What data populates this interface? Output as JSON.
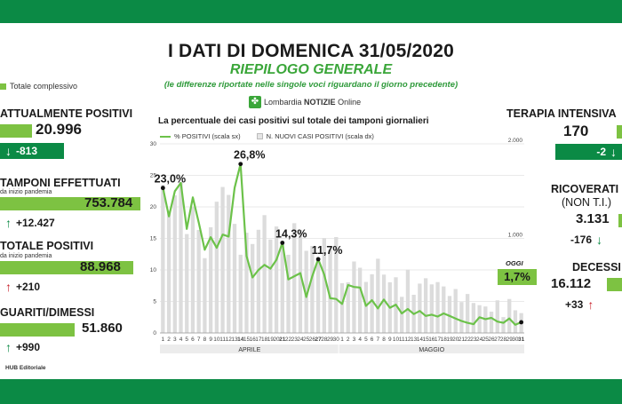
{
  "header": {
    "title": "I DATI DI DOMENICA 31/05/2020",
    "subtitle": "RIEPILOGO GENERALE",
    "note": "(le differenze riportate nelle singole voci riguardano il giorno precedente)",
    "logo_prefix": "Lombardia",
    "logo_bold": "NOTIZIE",
    "logo_suffix": "Online"
  },
  "legend_total": "Totale complessivo",
  "left_stats": {
    "attualmente_positivi": {
      "title": "ATTUALMENTE POSITIVI",
      "value": "20.996",
      "delta": "-813"
    },
    "tamponi": {
      "title": "TAMPONI EFFETTUATI",
      "sub": "da inizio pandemia",
      "value": "753.784",
      "delta": "+12.427"
    },
    "totale_positivi": {
      "title": "TOTALE POSITIVI",
      "sub": "da inizio pandemia",
      "value": "88.968",
      "delta": "+210"
    },
    "guariti": {
      "title": "GUARITI/DIMESSI",
      "value": "51.860",
      "delta": "+990"
    }
  },
  "right_stats": {
    "terapia": {
      "title": "TERAPIA INTENSIVA",
      "value": "170",
      "delta": "-2"
    },
    "ricoverati": {
      "title": "RICOVERATI",
      "title2": "(NON T.I.)",
      "value": "3.131",
      "delta": "-176"
    },
    "decessi": {
      "title": "DECESSI",
      "value": "16.112",
      "delta": "+33"
    }
  },
  "footer": "HUB Editoriale",
  "oggi_label": "OGGI",
  "oggi_value": "1,7%",
  "colors": {
    "green_dark": "#0b8a45",
    "green_light": "#7dc242",
    "line": "#6cc24a",
    "bar": "#dcdcdc",
    "red": "#c8202a"
  },
  "chart_data": {
    "type": "line",
    "title": "La percentuale dei casi positivi sul totale dei tamponi giornalieri",
    "legend": [
      "% POSITIVI (scala sx)",
      "N. NUOVI CASI POSITIVI (scala dx)"
    ],
    "x_labels": [
      "1",
      "2",
      "3",
      "4",
      "5",
      "6",
      "7",
      "8",
      "9",
      "10",
      "11",
      "12",
      "13",
      "14",
      "15",
      "16",
      "17",
      "18",
      "19",
      "20",
      "21",
      "22",
      "23",
      "24",
      "25",
      "26",
      "27",
      "28",
      "29",
      "30",
      "1",
      "2",
      "3",
      "4",
      "5",
      "6",
      "7",
      "8",
      "9",
      "10",
      "11",
      "12",
      "13",
      "14",
      "15",
      "16",
      "17",
      "18",
      "19",
      "20",
      "21",
      "22",
      "23",
      "24",
      "25",
      "26",
      "27",
      "28",
      "29",
      "30",
      "31"
    ],
    "months": [
      "APRILE",
      "MAGGIO"
    ],
    "y_left": {
      "min": 0,
      "max": 30,
      "ticks": [
        0,
        5,
        10,
        15,
        20,
        25,
        30
      ]
    },
    "y_right": {
      "min": 0,
      "max": 2000,
      "ticks": [
        1000,
        2000
      ],
      "tick_labels": [
        "1.000",
        "2.000"
      ]
    },
    "series": [
      {
        "name": "% POSITIVI (scala sx)",
        "axis": "left",
        "values": [
          23.0,
          18.5,
          22.5,
          23.8,
          16.5,
          21.5,
          17.5,
          13.2,
          15.2,
          13.5,
          15.6,
          15.3,
          23.0,
          26.8,
          12.2,
          8.8,
          10.0,
          10.8,
          10.2,
          11.6,
          14.3,
          8.5,
          9.0,
          9.5,
          5.7,
          9.0,
          11.7,
          9.3,
          5.5,
          5.4,
          4.6,
          7.6,
          7.3,
          7.2,
          4.3,
          5.2,
          3.9,
          5.3,
          4.0,
          4.5,
          3.1,
          3.8,
          3.0,
          3.5,
          2.7,
          2.9,
          2.6,
          3.1,
          2.7,
          2.3,
          1.9,
          1.6,
          1.4,
          2.5,
          2.2,
          2.4,
          1.8,
          1.6,
          2.3,
          1.3,
          1.7
        ]
      },
      {
        "name": "N. NUOVI CASI POSITIVI (scala dx)",
        "axis": "right",
        "values": [
          1565,
          1292,
          1455,
          1598,
          1046,
          1337,
          1089,
          791,
          1118,
          1388,
          1544,
          1460,
          1154,
          827,
          1060,
          941,
          1091,
          1246,
          988,
          1126,
          960,
          827,
          1161,
          1091,
          869,
          920,
          789,
          1003,
          881,
          1014,
          526,
          536,
          756,
          690,
          540,
          621,
          785,
          617,
          536,
          589,
          382,
          669,
          404,
          522,
          579,
          514,
          538,
          492,
          391,
          465,
          327,
          412,
          317,
          294,
          280,
          225,
          345,
          168,
          359,
          240,
          210
        ]
      }
    ],
    "annotations": [
      {
        "label": "23,0%",
        "x": "1",
        "y": 23.0
      },
      {
        "label": "26,8%",
        "x": "14",
        "y": 26.8
      },
      {
        "label": "14,3%",
        "x": "21",
        "y": 14.3
      },
      {
        "label": "11,7%",
        "x": "27",
        "y": 11.7
      },
      {
        "label": "1,7%",
        "x": "31",
        "y": 1.7
      }
    ]
  }
}
